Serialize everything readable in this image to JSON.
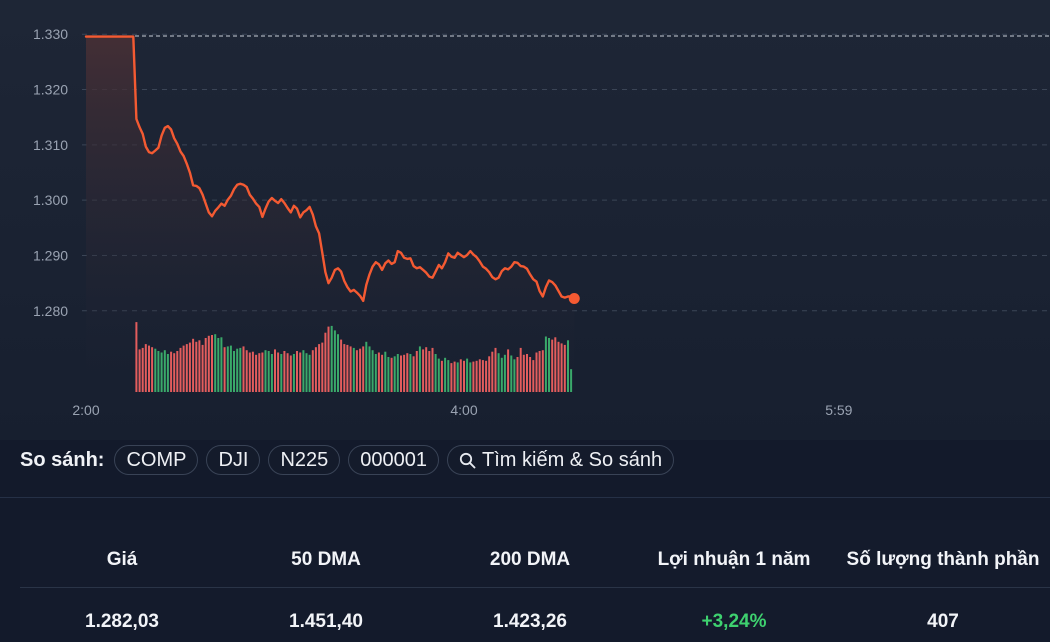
{
  "chart_data": {
    "type": "line",
    "y_ticks": [
      "1.330",
      "1.320",
      "1.310",
      "1.300",
      "1.290",
      "1.280"
    ],
    "y_values": [
      1330,
      1320,
      1310,
      1300,
      1290,
      1280
    ],
    "ylim": [
      1278,
      1331.5
    ],
    "x_ticks": [
      "2:00",
      "4:00",
      "5:59"
    ],
    "x_tick_minutes": [
      0,
      120,
      239
    ],
    "xlim_minutes": [
      0,
      240
    ],
    "reference_value": 1329.5,
    "grid": true,
    "price_series": [
      [
        0,
        1329.4
      ],
      [
        15,
        1329.4
      ],
      [
        16,
        1314.5
      ],
      [
        17,
        1313
      ],
      [
        18,
        1311.8
      ],
      [
        19,
        1309.5
      ],
      [
        20,
        1308.5
      ],
      [
        21,
        1308.3
      ],
      [
        22,
        1308.8
      ],
      [
        23,
        1309.3
      ],
      [
        24,
        1311.5
      ],
      [
        25,
        1312.9
      ],
      [
        26,
        1313.2
      ],
      [
        27,
        1312.6
      ],
      [
        28,
        1311
      ],
      [
        29,
        1310
      ],
      [
        30,
        1308.6
      ],
      [
        31,
        1307.8
      ],
      [
        32,
        1306.4
      ],
      [
        33,
        1304.8
      ],
      [
        34,
        1302.5
      ],
      [
        35,
        1302.4
      ],
      [
        36,
        1302
      ],
      [
        37,
        1300.8
      ],
      [
        38,
        1299.2
      ],
      [
        39,
        1297.6
      ],
      [
        40,
        1296.9
      ],
      [
        41,
        1297.9
      ],
      [
        42,
        1298.5
      ],
      [
        43,
        1299.2
      ],
      [
        44,
        1298.8
      ],
      [
        45,
        1299.9
      ],
      [
        46,
        1300.6
      ],
      [
        47,
        1301.8
      ],
      [
        48,
        1302.6
      ],
      [
        49,
        1302.8
      ],
      [
        50,
        1302.6
      ],
      [
        51,
        1302.2
      ],
      [
        52,
        1300.8
      ],
      [
        53,
        1300.1
      ],
      [
        54,
        1299.2
      ],
      [
        55,
        1298.6
      ],
      [
        56,
        1296.8
      ],
      [
        57,
        1298.3
      ],
      [
        58,
        1299.6
      ],
      [
        59,
        1300.2
      ],
      [
        60,
        1299.7
      ],
      [
        61,
        1299.3
      ],
      [
        62,
        1300
      ],
      [
        63,
        1299.3
      ],
      [
        64,
        1298.4
      ],
      [
        65,
        1297.6
      ],
      [
        66,
        1298.8
      ],
      [
        67,
        1298.3
      ],
      [
        68,
        1296.7
      ],
      [
        69,
        1297.6
      ],
      [
        70,
        1298
      ],
      [
        71,
        1298.6
      ],
      [
        72,
        1297.2
      ],
      [
        73,
        1295.1
      ],
      [
        74,
        1293.8
      ],
      [
        75,
        1290.3
      ],
      [
        76,
        1286.8
      ],
      [
        77,
        1284.8
      ],
      [
        78,
        1285.8
      ],
      [
        79,
        1287.2
      ],
      [
        80,
        1287.5
      ],
      [
        81,
        1286.9
      ],
      [
        82,
        1285.2
      ],
      [
        83,
        1284.1
      ],
      [
        84,
        1283.3
      ],
      [
        85,
        1283.6
      ],
      [
        86,
        1283.1
      ],
      [
        87,
        1282.5
      ],
      [
        88,
        1281.6
      ],
      [
        89,
        1284.5
      ],
      [
        90,
        1286.4
      ],
      [
        91,
        1287.8
      ],
      [
        92,
        1288.6
      ],
      [
        93,
        1288.2
      ],
      [
        94,
        1287.2
      ],
      [
        95,
        1288.4
      ],
      [
        96,
        1288.9
      ],
      [
        97,
        1288.3
      ],
      [
        98,
        1288.6
      ],
      [
        99,
        1290.6
      ],
      [
        100,
        1290.3
      ],
      [
        101,
        1289.4
      ],
      [
        102,
        1289.2
      ],
      [
        103,
        1289.3
      ],
      [
        104,
        1287.9
      ],
      [
        105,
        1287.5
      ],
      [
        106,
        1287.7
      ],
      [
        107,
        1287.2
      ],
      [
        108,
        1286.7
      ],
      [
        109,
        1286
      ],
      [
        110,
        1285.8
      ],
      [
        111,
        1286.9
      ],
      [
        112,
        1288.1
      ],
      [
        113,
        1287.5
      ],
      [
        114,
        1288.6
      ],
      [
        115,
        1290.2
      ],
      [
        116,
        1289.6
      ],
      [
        117,
        1289.4
      ],
      [
        118,
        1290.3
      ],
      [
        119,
        1289.9
      ],
      [
        120,
        1289.5
      ],
      [
        121,
        1289.9
      ],
      [
        122,
        1290.6
      ],
      [
        123,
        1290
      ],
      [
        124,
        1289.5
      ],
      [
        125,
        1288.7
      ],
      [
        126,
        1287.8
      ],
      [
        127,
        1287.4
      ],
      [
        128,
        1286.8
      ],
      [
        129,
        1285.9
      ],
      [
        130,
        1285.5
      ],
      [
        131,
        1285.8
      ],
      [
        132,
        1287
      ],
      [
        133,
        1287.5
      ],
      [
        134,
        1287.3
      ],
      [
        135,
        1287.8
      ],
      [
        136,
        1288.6
      ],
      [
        137,
        1288.5
      ],
      [
        138,
        1287.9
      ],
      [
        139,
        1287.8
      ],
      [
        140,
        1287.4
      ],
      [
        141,
        1286.4
      ],
      [
        142,
        1285.5
      ],
      [
        143,
        1285.1
      ],
      [
        144,
        1283.4
      ],
      [
        145,
        1282.4
      ],
      [
        146,
        1284.1
      ],
      [
        147,
        1285.3
      ],
      [
        148,
        1285
      ],
      [
        149,
        1284.4
      ],
      [
        150,
        1283.4
      ],
      [
        151,
        1282.4
      ],
      [
        152,
        1282.2
      ],
      [
        153,
        1282.4
      ],
      [
        154,
        1282.4
      ],
      [
        155,
        1282.03
      ]
    ],
    "volume_series": [
      [
        16,
        0.92
      ],
      [
        17,
        0.56
      ],
      [
        18,
        0.58
      ],
      [
        19,
        0.63
      ],
      [
        20,
        0.61
      ],
      [
        21,
        0.59
      ],
      [
        22,
        0.57
      ],
      [
        23,
        0.54
      ],
      [
        24,
        0.52
      ],
      [
        25,
        0.55
      ],
      [
        26,
        0.5
      ],
      [
        27,
        0.53
      ],
      [
        28,
        0.51
      ],
      [
        29,
        0.54
      ],
      [
        30,
        0.58
      ],
      [
        31,
        0.61
      ],
      [
        32,
        0.63
      ],
      [
        33,
        0.65
      ],
      [
        34,
        0.7
      ],
      [
        35,
        0.66
      ],
      [
        36,
        0.68
      ],
      [
        37,
        0.62
      ],
      [
        38,
        0.71
      ],
      [
        39,
        0.74
      ],
      [
        40,
        0.75
      ],
      [
        41,
        0.76
      ],
      [
        42,
        0.71
      ],
      [
        43,
        0.72
      ],
      [
        44,
        0.59
      ],
      [
        45,
        0.6
      ],
      [
        46,
        0.61
      ],
      [
        47,
        0.54
      ],
      [
        48,
        0.57
      ],
      [
        49,
        0.58
      ],
      [
        50,
        0.6
      ],
      [
        51,
        0.55
      ],
      [
        52,
        0.52
      ],
      [
        53,
        0.53
      ],
      [
        54,
        0.49
      ],
      [
        55,
        0.51
      ],
      [
        56,
        0.52
      ],
      [
        57,
        0.55
      ],
      [
        58,
        0.54
      ],
      [
        59,
        0.5
      ],
      [
        60,
        0.56
      ],
      [
        61,
        0.52
      ],
      [
        62,
        0.5
      ],
      [
        63,
        0.54
      ],
      [
        64,
        0.51
      ],
      [
        65,
        0.48
      ],
      [
        66,
        0.5
      ],
      [
        67,
        0.54
      ],
      [
        68,
        0.52
      ],
      [
        69,
        0.55
      ],
      [
        70,
        0.51
      ],
      [
        71,
        0.49
      ],
      [
        72,
        0.55
      ],
      [
        73,
        0.59
      ],
      [
        74,
        0.63
      ],
      [
        75,
        0.65
      ],
      [
        76,
        0.78
      ],
      [
        77,
        0.86
      ],
      [
        78,
        0.87
      ],
      [
        79,
        0.81
      ],
      [
        80,
        0.76
      ],
      [
        81,
        0.69
      ],
      [
        82,
        0.63
      ],
      [
        83,
        0.62
      ],
      [
        84,
        0.6
      ],
      [
        85,
        0.58
      ],
      [
        86,
        0.55
      ],
      [
        87,
        0.57
      ],
      [
        88,
        0.6
      ],
      [
        89,
        0.66
      ],
      [
        90,
        0.6
      ],
      [
        91,
        0.55
      ],
      [
        92,
        0.5
      ],
      [
        93,
        0.52
      ],
      [
        94,
        0.49
      ],
      [
        95,
        0.53
      ],
      [
        96,
        0.46
      ],
      [
        97,
        0.45
      ],
      [
        98,
        0.47
      ],
      [
        99,
        0.5
      ],
      [
        100,
        0.48
      ],
      [
        101,
        0.49
      ],
      [
        102,
        0.51
      ],
      [
        103,
        0.5
      ],
      [
        104,
        0.47
      ],
      [
        105,
        0.54
      ],
      [
        106,
        0.6
      ],
      [
        107,
        0.56
      ],
      [
        108,
        0.59
      ],
      [
        109,
        0.54
      ],
      [
        110,
        0.58
      ],
      [
        111,
        0.5
      ],
      [
        112,
        0.44
      ],
      [
        113,
        0.41
      ],
      [
        114,
        0.45
      ],
      [
        115,
        0.42
      ],
      [
        116,
        0.38
      ],
      [
        117,
        0.4
      ],
      [
        118,
        0.39
      ],
      [
        119,
        0.43
      ],
      [
        120,
        0.41
      ],
      [
        121,
        0.44
      ],
      [
        122,
        0.39
      ],
      [
        123,
        0.4
      ],
      [
        124,
        0.41
      ],
      [
        125,
        0.43
      ],
      [
        126,
        0.42
      ],
      [
        127,
        0.41
      ],
      [
        128,
        0.47
      ],
      [
        129,
        0.53
      ],
      [
        130,
        0.58
      ],
      [
        131,
        0.51
      ],
      [
        132,
        0.45
      ],
      [
        133,
        0.49
      ],
      [
        134,
        0.56
      ],
      [
        135,
        0.48
      ],
      [
        136,
        0.43
      ],
      [
        137,
        0.46
      ],
      [
        138,
        0.58
      ],
      [
        139,
        0.49
      ],
      [
        140,
        0.5
      ],
      [
        141,
        0.46
      ],
      [
        142,
        0.42
      ],
      [
        143,
        0.52
      ],
      [
        144,
        0.54
      ],
      [
        145,
        0.55
      ],
      [
        146,
        0.73
      ],
      [
        147,
        0.71
      ],
      [
        148,
        0.69
      ],
      [
        149,
        0.72
      ],
      [
        150,
        0.66
      ],
      [
        151,
        0.64
      ],
      [
        152,
        0.62
      ],
      [
        153,
        0.68
      ],
      [
        154,
        0.3
      ]
    ],
    "colors": {
      "line": "#f45a32",
      "up": "#3aa96a",
      "down": "#e35d5d",
      "grid": "#3b4556",
      "axis_text": "#9aa3b2",
      "reference_line": "#c9ced8"
    }
  },
  "compare": {
    "label": "So sánh:",
    "chips": [
      "COMP",
      "DJI",
      "N225",
      "000001"
    ],
    "search_label": "Tìm kiếm & So sánh",
    "search_icon": "search-icon"
  },
  "stats": {
    "headers": [
      "Giá",
      "50 DMA",
      "200 DMA",
      "Lợi nhuận 1 năm",
      "Số lượng thành phần"
    ],
    "values": [
      "1.282,03",
      "1.451,40",
      "1.423,26",
      "+3,24%",
      "407"
    ],
    "positive_color": "#3ed16f"
  }
}
